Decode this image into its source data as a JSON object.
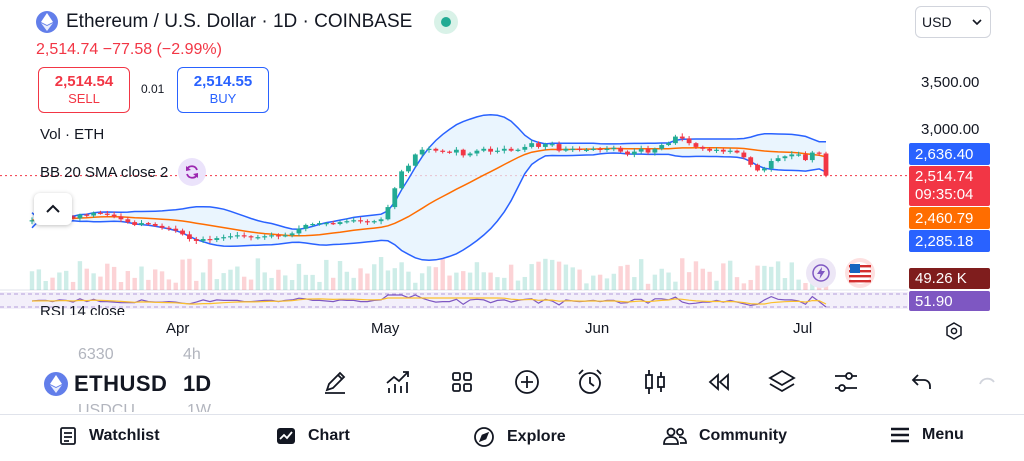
{
  "header": {
    "symbol_title": "Ethereum / U.S. Dollar · 1D · COINBASE",
    "price_change": "2,514.74  −77.58 (−2.99%)",
    "currency": "USD"
  },
  "trade": {
    "sell_price": "2,514.54",
    "sell_label": "SELL",
    "spread": "0.01",
    "buy_price": "2,514.55",
    "buy_label": "BUY"
  },
  "indicators": {
    "volume_legend": "Vol · ETH",
    "bb_legend": "BB 20 SMA close 2",
    "rsi_legend": "RSI 14 close"
  },
  "price_axis": {
    "ticks": [
      "3,500.00",
      "3,000.00"
    ],
    "tags": {
      "bb_upper": "2,636.40",
      "last_price": "2,514.74",
      "countdown": "09:35:04",
      "bb_basis": "2,460.79",
      "bb_lower": "2,285.18",
      "volume": "49.26 K",
      "rsi": "51.90"
    }
  },
  "time_axis": {
    "ticks": [
      "Apr",
      "May",
      "Jun",
      "Jul"
    ]
  },
  "toolbar": {
    "symbol": "ETHUSD",
    "interval": "1D",
    "ghost_symbol_above": "6330",
    "ghost_interval_above": "4h",
    "ghost_symbol_below": "USDCU",
    "ghost_interval_below": "1W",
    "tools": [
      "pencil-icon",
      "chart-growth-icon",
      "grid-icon",
      "plus-circle-icon",
      "alarm-clock-icon",
      "candles-icon",
      "rewind-icon",
      "layers-icon",
      "sliders-icon",
      "undo-icon"
    ]
  },
  "nav": {
    "watchlist": "Watchlist",
    "chart": "Chart",
    "explore": "Explore",
    "community": "Community",
    "menu": "Menu"
  },
  "colors": {
    "up": "#22ab94",
    "down": "#f23645",
    "bb_band": "#2962ff",
    "bb_basis": "#ff6d00",
    "rsi": "#7e57c2",
    "accent": "#2962ff"
  },
  "chart_data": {
    "type": "candlestick",
    "title": "Ethereum / U.S. Dollar · 1D · COINBASE",
    "x_ticks": [
      "Apr",
      "May",
      "Jun",
      "Jul"
    ],
    "y_ticks": [
      3000,
      3500
    ],
    "last_close": 2514.74,
    "bollinger": {
      "upper": 2636.4,
      "basis": 2460.79,
      "lower": 2285.18
    },
    "volume_last": "49.26 K",
    "rsi_last": 51.9,
    "closes": [
      2040,
      2050,
      2060,
      2050,
      2070,
      2080,
      2060,
      2100,
      2090,
      2120,
      2110,
      2100,
      2080,
      2050,
      2020,
      1990,
      2010,
      2000,
      1980,
      1960,
      1950,
      1930,
      1890,
      1840,
      1820,
      1840,
      1830,
      1850,
      1860,
      1870,
      1880,
      1870,
      1860,
      1860,
      1870,
      1880,
      1870,
      1880,
      1900,
      1950,
      1990,
      2000,
      2010,
      2010,
      2000,
      2020,
      2030,
      2040,
      2030,
      2020,
      2030,
      2050,
      2180,
      2380,
      2560,
      2620,
      2740,
      2790,
      2800,
      2780,
      2770,
      2760,
      2790,
      2730,
      2750,
      2780,
      2800,
      2770,
      2780,
      2800,
      2780,
      2790,
      2820,
      2860,
      2820,
      2850,
      2850,
      2780,
      2800,
      2800,
      2790,
      2790,
      2800,
      2790,
      2800,
      2810,
      2770,
      2740,
      2770,
      2800,
      2760,
      2800,
      2840,
      2860,
      2930,
      2910,
      2860,
      2820,
      2800,
      2780,
      2790,
      2770,
      2780,
      2760,
      2710,
      2630,
      2570,
      2590,
      2670,
      2700,
      2720,
      2740,
      2740,
      2680,
      2760,
      2750,
      2514.74
    ]
  }
}
